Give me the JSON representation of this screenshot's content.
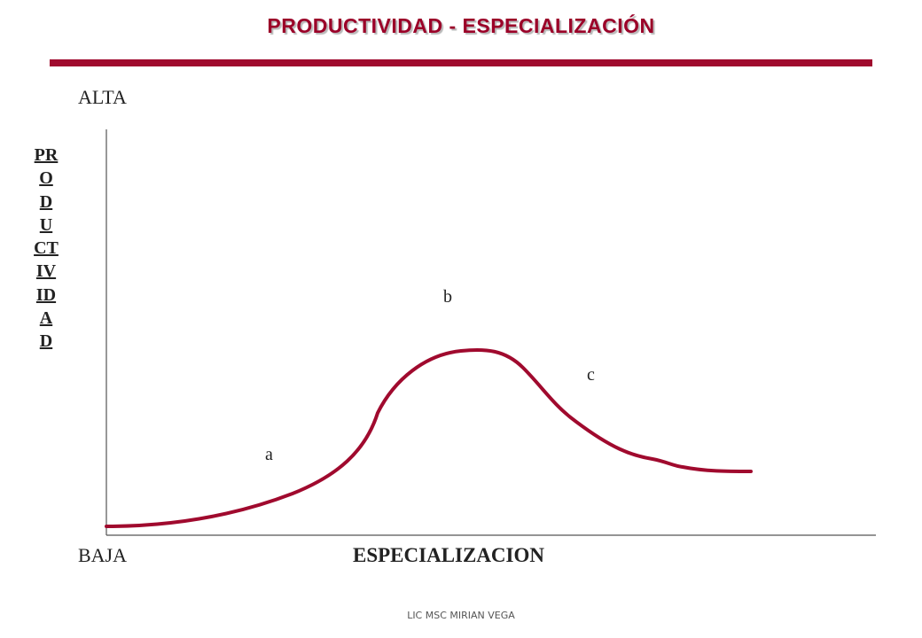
{
  "title": "PRODUCTIVIDAD - ESPECIALIZACIÓN",
  "axis": {
    "y_label": "PRODUCTIVIDAD",
    "y_high": "ALTA",
    "y_low": "BAJA",
    "x_label": "ESPECIALIZACION"
  },
  "points": {
    "a": "a",
    "b": "b",
    "c": "c"
  },
  "colors": {
    "accent": "#a00a2e",
    "curve": "#a00a2e",
    "text": "#222222"
  },
  "footer": "LIC MSC MIRIAN VEGA"
}
